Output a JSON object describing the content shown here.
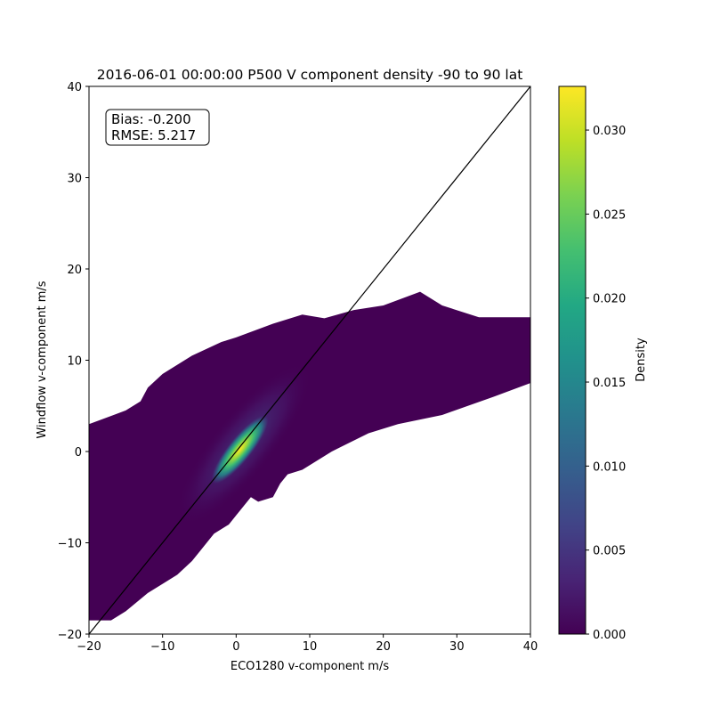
{
  "chart_data": {
    "type": "heatmap",
    "title": "2016-06-01 00:00:00 P500 V component density -90 to 90 lat",
    "xlabel": "ECO1280 v-component m/s",
    "ylabel": "Windflow v-component m/s",
    "xlim": [
      -20,
      40
    ],
    "ylim": [
      -20,
      40
    ],
    "xticks": [
      -20,
      -10,
      0,
      10,
      20,
      30,
      40
    ],
    "yticks": [
      -20,
      -10,
      0,
      10,
      20,
      30,
      40
    ],
    "xtick_labels": [
      "−20",
      "−10",
      "0",
      "10",
      "20",
      "30",
      "40"
    ],
    "ytick_labels": [
      "−20",
      "−10",
      "0",
      "10",
      "20",
      "30",
      "40"
    ],
    "reference_line": {
      "from": [
        -20,
        -20
      ],
      "to": [
        40,
        40
      ]
    },
    "annotation": {
      "bias_label": "Bias: -0.200",
      "rmse_label": "RMSE: 5.217"
    },
    "colorbar": {
      "label": "Density",
      "colormap": "viridis",
      "range": [
        0.0,
        0.0326
      ],
      "ticks": [
        0.0,
        0.005,
        0.01,
        0.015,
        0.02,
        0.025,
        0.03
      ],
      "tick_labels": [
        "0.000",
        "0.005",
        "0.010",
        "0.015",
        "0.020",
        "0.025",
        "0.030"
      ]
    },
    "grid": false,
    "point_cloud_outline": [
      [
        -20,
        3
      ],
      [
        -15,
        4.5
      ],
      [
        -13,
        5.5
      ],
      [
        -12,
        7
      ],
      [
        -10,
        8.5
      ],
      [
        -6,
        10.5
      ],
      [
        -2,
        12
      ],
      [
        0,
        12.5
      ],
      [
        5,
        14
      ],
      [
        9,
        15
      ],
      [
        12,
        14.6
      ],
      [
        16,
        15.5
      ],
      [
        20,
        16
      ],
      [
        25,
        17.5
      ],
      [
        28,
        16
      ],
      [
        33,
        14.7
      ],
      [
        40,
        14.7
      ],
      [
        40,
        7.5
      ],
      [
        35,
        6
      ],
      [
        28,
        4
      ],
      [
        22,
        3
      ],
      [
        18,
        2
      ],
      [
        13,
        0
      ],
      [
        9,
        -2
      ],
      [
        7,
        -2.5
      ],
      [
        6,
        -3.5
      ],
      [
        5,
        -5
      ],
      [
        3,
        -5.5
      ],
      [
        2,
        -5
      ],
      [
        1,
        -6
      ],
      [
        0,
        -7
      ],
      [
        -1,
        -8
      ],
      [
        -3,
        -9
      ],
      [
        -5,
        -11
      ],
      [
        -6,
        -12
      ],
      [
        -8,
        -13.5
      ],
      [
        -10,
        -14.5
      ],
      [
        -12,
        -15.5
      ],
      [
        -15,
        -17.5
      ],
      [
        -17,
        -18.5
      ],
      [
        -20,
        -18.5
      ]
    ],
    "density_peak": {
      "x": 1,
      "y": 0.8,
      "value": 0.0326
    }
  }
}
